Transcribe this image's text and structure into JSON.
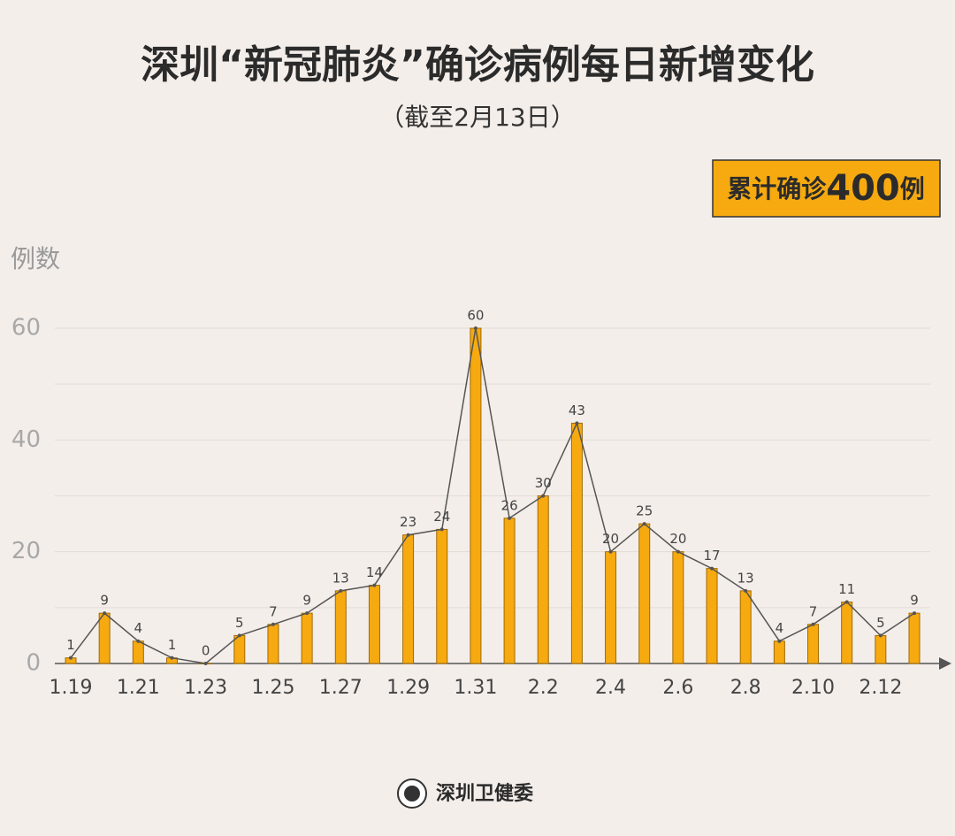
{
  "chart_data": {
    "type": "bar",
    "title": "深圳“新冠肺炎”确诊病例每日新增变化",
    "subtitle": "（截至2月13日）",
    "y_label": "例数",
    "total_box": {
      "prefix": "累计确诊",
      "value": 400,
      "suffix": "例"
    },
    "footer": "深圳卫健委",
    "categories": [
      "1.19",
      null,
      "1.21",
      null,
      "1.23",
      null,
      "1.25",
      null,
      "1.27",
      null,
      "1.29",
      null,
      "1.31",
      null,
      "2.2",
      null,
      "2.4",
      null,
      "2.6",
      null,
      "2.8",
      null,
      "2.10",
      null,
      "2.12",
      null
    ],
    "values": [
      1,
      9,
      4,
      1,
      0,
      5,
      7,
      9,
      13,
      14,
      23,
      24,
      60,
      26,
      30,
      43,
      20,
      25,
      20,
      17,
      13,
      4,
      7,
      11,
      5,
      9
    ],
    "color": "#f6aa10",
    "line_color": "#555555",
    "ylim": [
      0,
      60
    ],
    "yticks": [
      0,
      20,
      40,
      60
    ],
    "y_minor_grid": [
      10,
      30,
      50
    ],
    "grid": true
  }
}
